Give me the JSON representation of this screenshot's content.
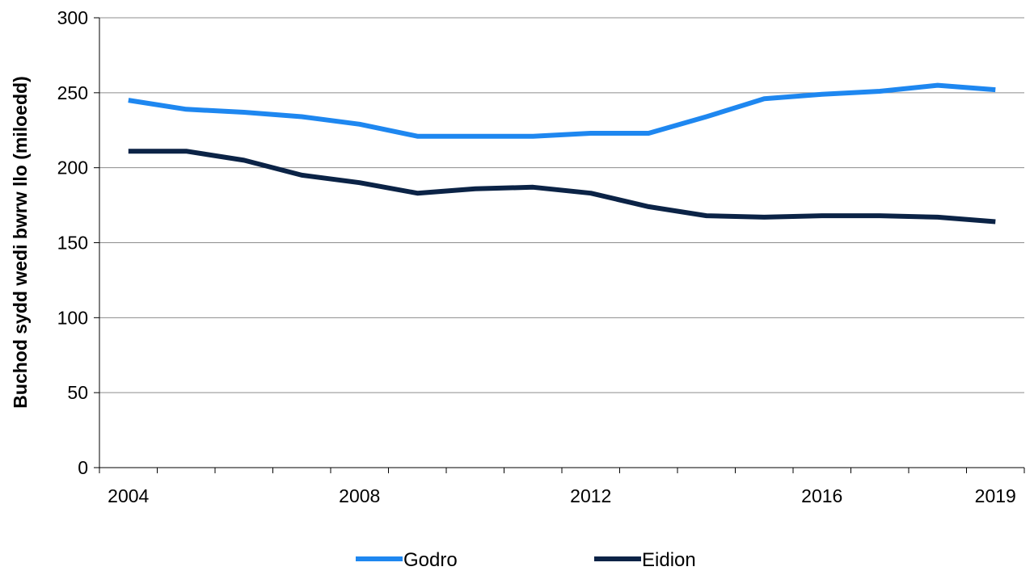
{
  "chart_data": {
    "type": "line",
    "ylabel": "Buchod sydd wedi bwrw llo (miloedd)",
    "xlabel": "",
    "x": [
      2004,
      2005,
      2006,
      2007,
      2008,
      2009,
      2010,
      2011,
      2012,
      2013,
      2014,
      2015,
      2016,
      2017,
      2018,
      2019
    ],
    "x_tick_labels": [
      "2004",
      "2008",
      "2012",
      "2016",
      "2019"
    ],
    "y_ticks": [
      0,
      50,
      100,
      150,
      200,
      250,
      300
    ],
    "ylim": [
      0,
      300
    ],
    "grid": "horizontal",
    "legend": "bottom",
    "series": [
      {
        "name": "Godro",
        "color": "#1e87f0",
        "values": [
          245,
          239,
          237,
          234,
          229,
          221,
          221,
          221,
          223,
          223,
          234,
          246,
          249,
          251,
          255,
          252
        ]
      },
      {
        "name": "Eidion",
        "color": "#0b2346",
        "values": [
          211,
          211,
          205,
          195,
          190,
          183,
          186,
          187,
          183,
          174,
          168,
          167,
          168,
          168,
          167,
          164
        ]
      }
    ]
  }
}
